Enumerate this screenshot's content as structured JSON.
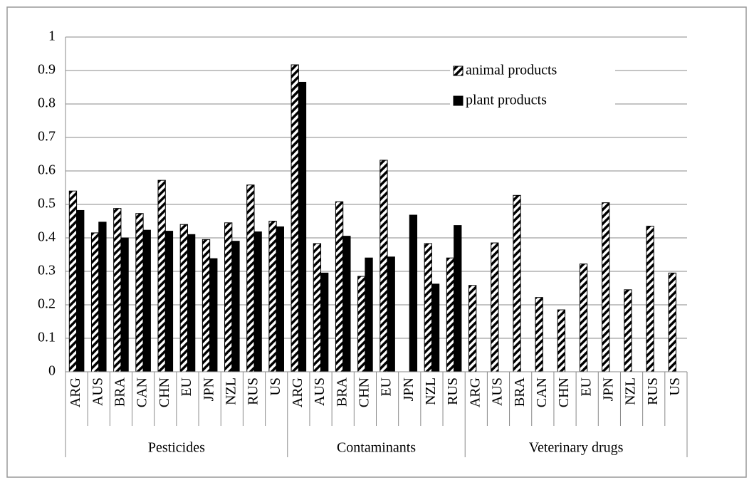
{
  "chart_data": {
    "type": "bar",
    "groups": [
      {
        "name": "Pesticides",
        "categories": [
          "ARG",
          "AUS",
          "BRA",
          "CAN",
          "CHN",
          "EU",
          "JPN",
          "NZL",
          "RUS",
          "US"
        ]
      },
      {
        "name": "Contaminants",
        "categories": [
          "ARG",
          "AUS",
          "BRA",
          "CHN",
          "EU",
          "JPN",
          "NZL",
          "RUS"
        ]
      },
      {
        "name": "Veterinary drugs",
        "categories": [
          "ARG",
          "AUS",
          "BRA",
          "CAN",
          "CHN",
          "EU",
          "JPN",
          "NZL",
          "RUS",
          "US"
        ]
      }
    ],
    "series": [
      {
        "name": "animal products",
        "color": "#000000",
        "fill": "hatch",
        "values": [
          0.54,
          0.415,
          0.488,
          0.473,
          0.572,
          0.44,
          0.395,
          0.445,
          0.558,
          0.45,
          0.917,
          0.383,
          0.508,
          0.285,
          0.632,
          null,
          0.383,
          0.34,
          0.258,
          0.385,
          0.527,
          0.222,
          0.185,
          0.322,
          0.505,
          0.245,
          0.435,
          0.295
        ]
      },
      {
        "name": "plant products",
        "color": "#000000",
        "fill": "solid",
        "values": [
          0.482,
          0.447,
          0.4,
          0.423,
          0.42,
          0.41,
          0.338,
          0.39,
          0.418,
          0.433,
          0.865,
          0.295,
          0.405,
          0.34,
          0.343,
          0.468,
          0.262,
          0.437,
          null,
          null,
          null,
          null,
          null,
          null,
          null,
          null,
          null,
          null
        ]
      }
    ],
    "ylim": [
      0,
      1
    ],
    "yticks": [
      0,
      0.1,
      0.2,
      0.3,
      0.4,
      0.5,
      0.6,
      0.7,
      0.8,
      0.9,
      1
    ],
    "grid": true,
    "legend": "top-right"
  }
}
